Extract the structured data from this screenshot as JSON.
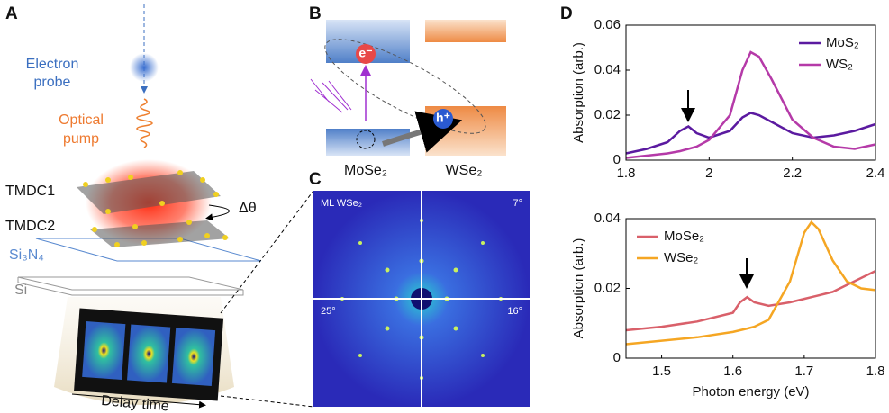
{
  "panel_a": {
    "label": "A",
    "probe": [
      "Electron",
      "probe"
    ],
    "pump": [
      "Optical",
      "pump"
    ],
    "layers": [
      "TMDC1",
      "TMDC2"
    ],
    "twist": "Δθ",
    "membrane": "Si₃N₄",
    "substrate": "Si",
    "delay": "Delay time"
  },
  "panel_b": {
    "label": "B",
    "materials": [
      "MoSe₂",
      "WSe₂"
    ],
    "electron": "e⁻",
    "hole": "h⁺"
  },
  "panel_c": {
    "label": "C",
    "sample": "ML WSe₂",
    "angles": [
      "7°",
      "25°",
      "16°"
    ]
  },
  "panel_d": {
    "label": "D"
  },
  "chart_data": [
    {
      "type": "line",
      "ylabel": "Absorption (arb.)",
      "legend": "upper right",
      "x": [
        1.8,
        1.85,
        1.9,
        1.93,
        1.95,
        1.97,
        2.0,
        2.05,
        2.08,
        2.1,
        2.12,
        2.15,
        2.2,
        2.25,
        2.3,
        2.35,
        2.4
      ],
      "series": [
        {
          "name": "MoS₂",
          "color": "#5b1aa0",
          "values": [
            0.003,
            0.005,
            0.008,
            0.013,
            0.015,
            0.012,
            0.01,
            0.013,
            0.019,
            0.021,
            0.02,
            0.017,
            0.012,
            0.01,
            0.011,
            0.013,
            0.016
          ]
        },
        {
          "name": "WS₂",
          "color": "#b53aa8",
          "values": [
            0.001,
            0.002,
            0.003,
            0.004,
            0.005,
            0.006,
            0.009,
            0.02,
            0.04,
            0.048,
            0.046,
            0.036,
            0.018,
            0.01,
            0.006,
            0.005,
            0.007
          ]
        }
      ],
      "xlim": [
        1.8,
        2.4
      ],
      "ylim": [
        0,
        0.06
      ],
      "xticks": [
        1.8,
        2,
        2.2,
        2.4
      ],
      "yticks": [
        0,
        0.02,
        0.04,
        0.06
      ]
    },
    {
      "type": "line",
      "ylabel": "Absorption (arb.)",
      "xlabel": "Photon energy (eV)",
      "legend": "upper left",
      "x": [
        1.45,
        1.5,
        1.55,
        1.6,
        1.61,
        1.62,
        1.63,
        1.65,
        1.68,
        1.7,
        1.71,
        1.72,
        1.74,
        1.76,
        1.78,
        1.8
      ],
      "series": [
        {
          "name": "MoSe₂",
          "color": "#d9606a",
          "values": [
            0.008,
            0.009,
            0.0105,
            0.013,
            0.016,
            0.0175,
            0.016,
            0.015,
            0.016,
            0.017,
            0.0175,
            0.018,
            0.019,
            0.021,
            0.023,
            0.025
          ]
        },
        {
          "name": "WSe₂",
          "color": "#f5a623",
          "values": [
            0.004,
            0.005,
            0.006,
            0.0075,
            0.008,
            0.0085,
            0.009,
            0.011,
            0.022,
            0.036,
            0.039,
            0.037,
            0.028,
            0.022,
            0.02,
            0.0195
          ]
        }
      ],
      "xlim": [
        1.45,
        1.8
      ],
      "ylim": [
        0,
        0.04
      ],
      "xticks": [
        1.5,
        1.6,
        1.7,
        1.8
      ],
      "yticks": [
        0,
        0.02,
        0.04
      ]
    }
  ]
}
